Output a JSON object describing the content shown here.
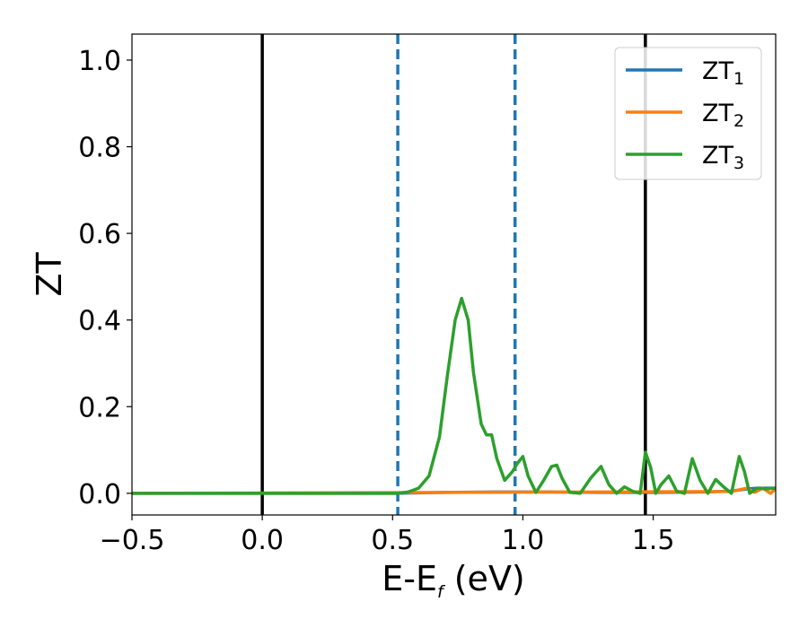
{
  "chart_data": {
    "type": "line",
    "xlabel": {
      "main": "E-E",
      "sub": "f",
      "tail": " (eV)"
    },
    "ylabel": "ZT",
    "xlim": [
      -0.5,
      1.97
    ],
    "ylim": [
      -0.05,
      1.06
    ],
    "grid": false,
    "legend_position": "top-right",
    "xticks": [
      -0.5,
      0.0,
      0.5,
      1.0,
      1.5
    ],
    "xtick_labels": [
      "−0.5",
      "0.0",
      "0.5",
      "1.0",
      "1.5"
    ],
    "yticks": [
      0.0,
      0.2,
      0.4,
      0.6,
      0.8,
      1.0
    ],
    "ytick_labels": [
      "0.0",
      "0.2",
      "0.4",
      "0.6",
      "0.8",
      "1.0"
    ],
    "vlines": [
      {
        "x": 0.0,
        "style": "solid",
        "color": "#000000"
      },
      {
        "x": 0.52,
        "style": "dashed",
        "color": "#1f77b4"
      },
      {
        "x": 0.97,
        "style": "dashed",
        "color": "#1f77b4"
      },
      {
        "x": 1.47,
        "style": "solid",
        "color": "#000000"
      }
    ],
    "series": [
      {
        "name": "ZT",
        "sub": "1",
        "color": "#1f77b4",
        "x": [
          -0.5,
          0.5,
          0.7,
          0.9,
          1.1,
          1.3,
          1.5,
          1.7,
          1.8,
          1.86,
          1.9,
          1.93,
          1.97
        ],
        "y": [
          0.0,
          0.0,
          0.002,
          0.003,
          0.003,
          0.002,
          0.002,
          0.003,
          0.005,
          0.01,
          0.012,
          0.012,
          0.012
        ]
      },
      {
        "name": "ZT",
        "sub": "2",
        "color": "#ff7f0e",
        "x": [
          -0.5,
          1.8,
          1.86,
          1.89,
          1.92,
          1.95,
          1.97
        ],
        "y": [
          0.0,
          0.004,
          0.012,
          0.002,
          0.012,
          0.0,
          0.01
        ]
      },
      {
        "name": "ZT",
        "sub": "3",
        "color": "#2ca02c",
        "x": [
          -0.5,
          0.52,
          0.56,
          0.6,
          0.64,
          0.68,
          0.71,
          0.74,
          0.765,
          0.79,
          0.81,
          0.84,
          0.86,
          0.88,
          0.9,
          0.93,
          0.96,
          0.98,
          1.0,
          1.02,
          1.05,
          1.08,
          1.11,
          1.13,
          1.15,
          1.18,
          1.22,
          1.26,
          1.3,
          1.33,
          1.36,
          1.39,
          1.42,
          1.45,
          1.47,
          1.49,
          1.51,
          1.53,
          1.56,
          1.59,
          1.62,
          1.65,
          1.68,
          1.71,
          1.74,
          1.77,
          1.8,
          1.83,
          1.85,
          1.87,
          1.9,
          1.93,
          1.97
        ],
        "y": [
          0.0,
          0.0,
          0.003,
          0.012,
          0.04,
          0.13,
          0.27,
          0.4,
          0.45,
          0.4,
          0.28,
          0.16,
          0.135,
          0.135,
          0.08,
          0.03,
          0.05,
          0.07,
          0.085,
          0.04,
          0.002,
          0.03,
          0.062,
          0.065,
          0.035,
          0.002,
          0.0,
          0.035,
          0.062,
          0.02,
          0.0,
          0.015,
          0.005,
          0.0,
          0.095,
          0.06,
          0.0,
          0.02,
          0.04,
          0.005,
          0.0,
          0.08,
          0.03,
          0.0,
          0.032,
          0.015,
          0.0,
          0.085,
          0.05,
          0.0,
          0.012,
          0.01,
          0.012
        ]
      }
    ]
  }
}
